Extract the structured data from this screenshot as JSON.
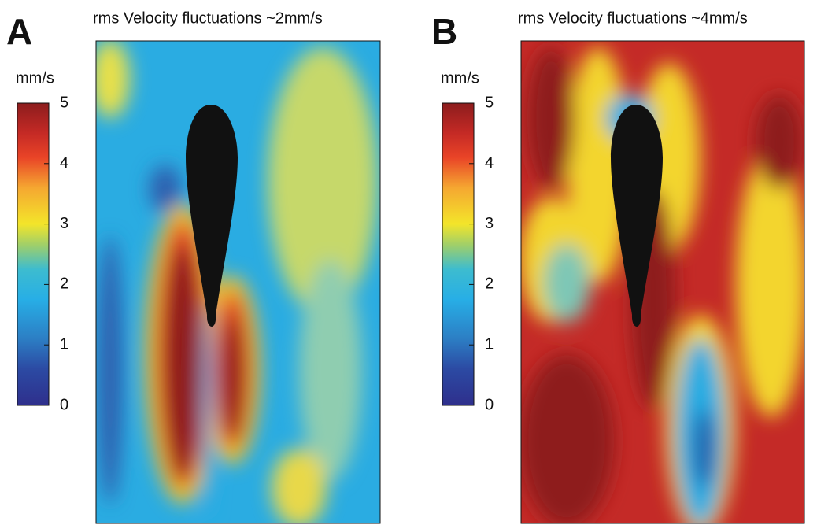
{
  "panels": [
    {
      "label": "A",
      "title": "rms Velocity fluctuations ~2mm/s",
      "colorbar": {
        "unit": "mm/s",
        "lim": [
          0,
          5
        ],
        "ticks": [
          0,
          1,
          2,
          3,
          4,
          5
        ]
      }
    },
    {
      "label": "B",
      "title": "rms Velocity fluctuations ~4mm/s",
      "colorbar": {
        "unit": "mm/s",
        "lim": [
          0,
          5
        ],
        "ticks": [
          0,
          1,
          2,
          3,
          4,
          5
        ]
      }
    }
  ]
}
